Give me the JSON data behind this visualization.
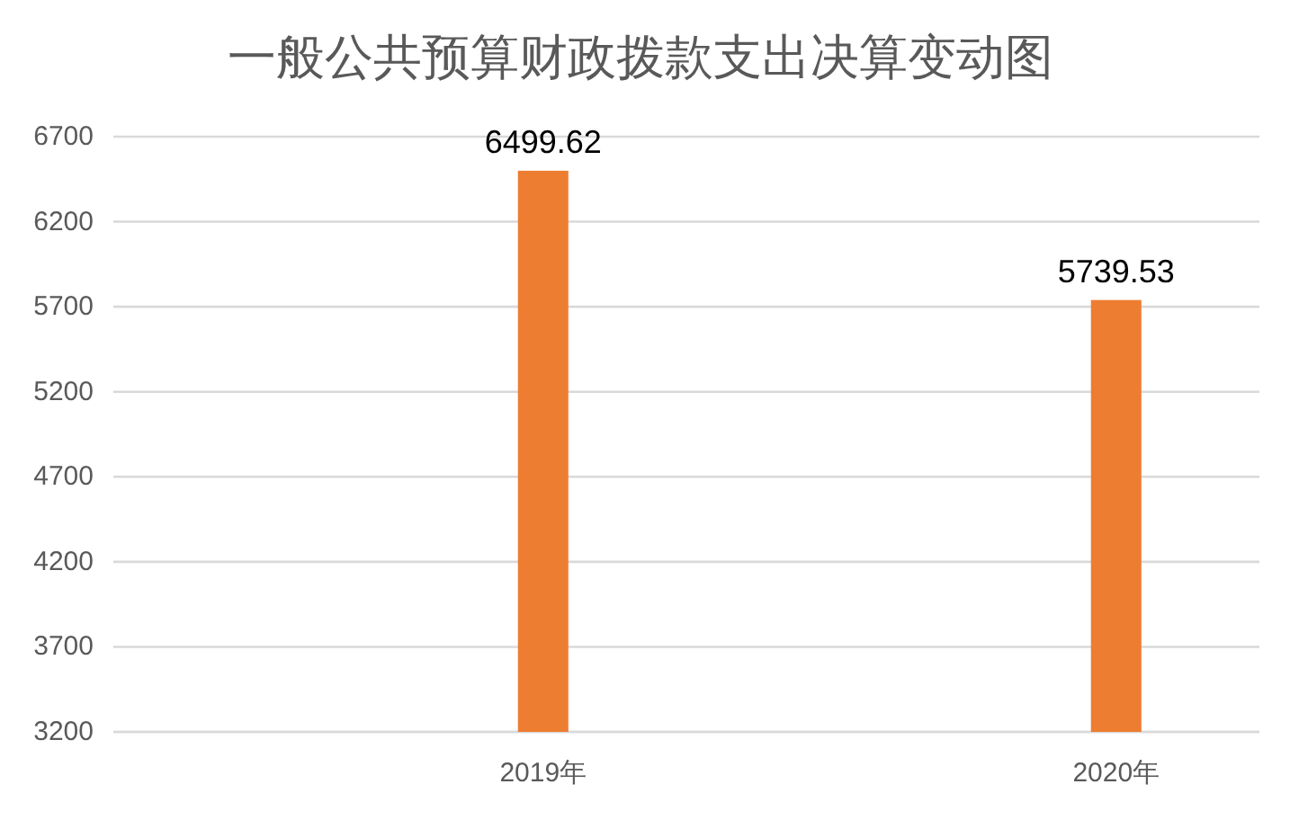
{
  "chart_data": {
    "type": "bar",
    "title": "一般公共预算财政拨款支出决算变动图",
    "categories": [
      "2019年",
      "2020年"
    ],
    "values": [
      6499.62,
      5739.53
    ],
    "color": "#ed7d31",
    "ylim": [
      3200,
      6700
    ],
    "yticks": [
      3200,
      3700,
      4200,
      4700,
      5200,
      5700,
      6200,
      6700
    ],
    "grid": "y",
    "data_labels": true
  }
}
